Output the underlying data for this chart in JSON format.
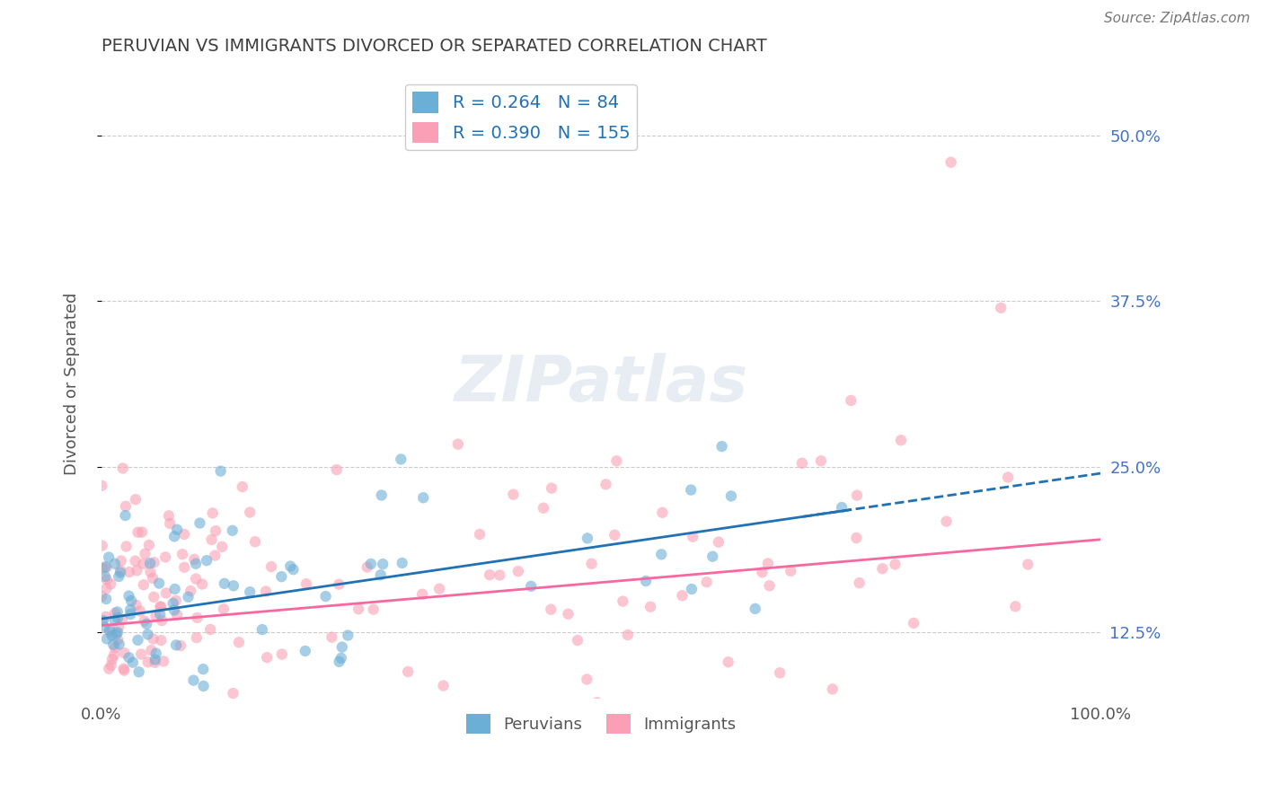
{
  "title": "PERUVIAN VS IMMIGRANTS DIVORCED OR SEPARATED CORRELATION CHART",
  "source": "Source: ZipAtlas.com",
  "xlabel": "",
  "ylabel": "Divorced or Separated",
  "legend_labels": [
    "Peruvians",
    "Immigrants"
  ],
  "legend_r": [
    "0.264",
    "0.390"
  ],
  "legend_n": [
    "84",
    "155"
  ],
  "blue_color": "#6baed6",
  "pink_color": "#fa9fb5",
  "blue_line_color": "#2171b5",
  "pink_line_color": "#f768a1",
  "xmin": 0.0,
  "xmax": 100.0,
  "ymin": 7.5,
  "ymax": 55.0,
  "yticks": [
    12.5,
    25.0,
    37.5,
    50.0
  ],
  "xticks": [
    0.0,
    100.0
  ],
  "background_color": "#ffffff",
  "grid_color": "#cccccc",
  "title_color": "#404040",
  "watermark": "ZIPatlas",
  "blue_R": 0.264,
  "blue_N": 84,
  "pink_R": 0.39,
  "pink_N": 155,
  "blue_x_intercept": 2.0,
  "blue_y_intercept": 13.5,
  "blue_slope": 0.11,
  "pink_x_intercept": 0.0,
  "pink_y_intercept": 13.0,
  "pink_slope": 0.065
}
